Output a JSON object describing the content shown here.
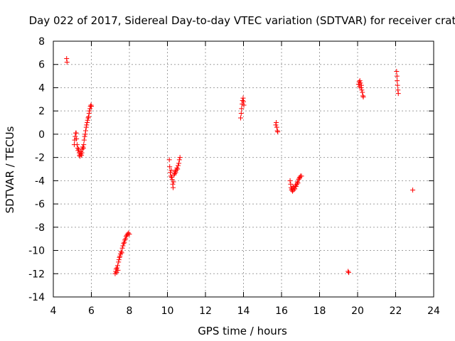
{
  "chart_data": {
    "type": "scatter",
    "title": "Day 022 of 2017, Sidereal Day-to-day VTEC variation (SDTVAR) for receiver crat",
    "xlabel": "GPS time / hours",
    "ylabel": "SDTVAR / TECUs",
    "xlim": [
      4,
      24
    ],
    "ylim": [
      -14,
      8
    ],
    "xticks": [
      4,
      6,
      8,
      10,
      12,
      14,
      16,
      18,
      20,
      22,
      24
    ],
    "yticks": [
      -14,
      -12,
      -10,
      -8,
      -6,
      -4,
      -2,
      0,
      2,
      4,
      6,
      8
    ],
    "grid": true,
    "marker": "+",
    "color": "#ff0000",
    "series": [
      {
        "name": "SDTVAR",
        "points": [
          [
            4.7,
            6.5
          ],
          [
            4.72,
            6.2
          ],
          [
            5.1,
            -0.9
          ],
          [
            5.12,
            -0.5
          ],
          [
            5.15,
            -0.2
          ],
          [
            5.18,
            0.1
          ],
          [
            5.2,
            0.1
          ],
          [
            5.22,
            -0.4
          ],
          [
            5.25,
            -0.9
          ],
          [
            5.28,
            -1.2
          ],
          [
            5.3,
            -1.4
          ],
          [
            5.33,
            -1.3
          ],
          [
            5.36,
            -1.6
          ],
          [
            5.38,
            -1.8
          ],
          [
            5.4,
            -1.9
          ],
          [
            5.43,
            -1.7
          ],
          [
            5.45,
            -1.5
          ],
          [
            5.48,
            -1.8
          ],
          [
            5.5,
            -1.6
          ],
          [
            5.52,
            -1.3
          ],
          [
            5.55,
            -1.1
          ],
          [
            5.58,
            -1.2
          ],
          [
            5.6,
            -0.9
          ],
          [
            5.62,
            -0.5
          ],
          [
            5.65,
            -0.2
          ],
          [
            5.68,
            0.0
          ],
          [
            5.7,
            0.3
          ],
          [
            5.73,
            0.6
          ],
          [
            5.75,
            0.8
          ],
          [
            5.78,
            1.0
          ],
          [
            5.8,
            1.2
          ],
          [
            5.83,
            1.4
          ],
          [
            5.85,
            1.5
          ],
          [
            5.88,
            1.8
          ],
          [
            5.9,
            2.0
          ],
          [
            5.93,
            2.2
          ],
          [
            5.95,
            2.4
          ],
          [
            5.98,
            2.5
          ],
          [
            6.0,
            2.4
          ],
          [
            7.25,
            -12.0
          ],
          [
            7.28,
            -11.8
          ],
          [
            7.3,
            -11.6
          ],
          [
            7.33,
            -11.9
          ],
          [
            7.35,
            -11.5
          ],
          [
            7.38,
            -11.3
          ],
          [
            7.4,
            -11.7
          ],
          [
            7.43,
            -11.0
          ],
          [
            7.45,
            -10.8
          ],
          [
            7.48,
            -10.6
          ],
          [
            7.5,
            -10.5
          ],
          [
            7.53,
            -10.3
          ],
          [
            7.56,
            -10.1
          ],
          [
            7.6,
            -10.2
          ],
          [
            7.63,
            -9.8
          ],
          [
            7.66,
            -9.6
          ],
          [
            7.7,
            -9.4
          ],
          [
            7.73,
            -9.3
          ],
          [
            7.76,
            -9.1
          ],
          [
            7.8,
            -9.0
          ],
          [
            7.83,
            -8.8
          ],
          [
            7.86,
            -8.7
          ],
          [
            7.9,
            -8.6
          ],
          [
            7.95,
            -8.5
          ],
          [
            8.0,
            -8.6
          ],
          [
            10.1,
            -2.2
          ],
          [
            10.12,
            -2.8
          ],
          [
            10.15,
            -3.3
          ],
          [
            10.18,
            -3.6
          ],
          [
            10.2,
            -3.1
          ],
          [
            10.22,
            -3.7
          ],
          [
            10.25,
            -3.9
          ],
          [
            10.28,
            -4.3
          ],
          [
            10.3,
            -4.6
          ],
          [
            10.32,
            -4.1
          ],
          [
            10.35,
            -3.5
          ],
          [
            10.38,
            -3.4
          ],
          [
            10.4,
            -3.2
          ],
          [
            10.43,
            -3.3
          ],
          [
            10.46,
            -3.1
          ],
          [
            10.5,
            -2.9
          ],
          [
            10.53,
            -3.0
          ],
          [
            10.56,
            -2.7
          ],
          [
            10.6,
            -2.5
          ],
          [
            10.63,
            -2.2
          ],
          [
            10.66,
            -2.0
          ],
          [
            13.85,
            1.4
          ],
          [
            13.88,
            1.8
          ],
          [
            13.9,
            2.2
          ],
          [
            13.93,
            2.6
          ],
          [
            13.95,
            2.9
          ],
          [
            13.98,
            3.1
          ],
          [
            14.0,
            2.8
          ],
          [
            14.02,
            2.5
          ],
          [
            15.7,
            0.8
          ],
          [
            15.72,
            1.0
          ],
          [
            15.75,
            0.6
          ],
          [
            15.78,
            0.3
          ],
          [
            15.8,
            0.2
          ],
          [
            16.45,
            -4.0
          ],
          [
            16.48,
            -4.3
          ],
          [
            16.5,
            -4.6
          ],
          [
            16.53,
            -4.8
          ],
          [
            16.55,
            -4.7
          ],
          [
            16.58,
            -4.9
          ],
          [
            16.6,
            -4.5
          ],
          [
            16.63,
            -4.8
          ],
          [
            16.66,
            -4.6
          ],
          [
            16.7,
            -4.7
          ],
          [
            16.73,
            -4.4
          ],
          [
            16.76,
            -4.5
          ],
          [
            16.8,
            -4.3
          ],
          [
            16.83,
            -4.1
          ],
          [
            16.86,
            -4.2
          ],
          [
            16.9,
            -3.9
          ],
          [
            16.93,
            -3.8
          ],
          [
            16.96,
            -3.7
          ],
          [
            17.0,
            -3.6
          ],
          [
            17.05,
            -3.6
          ],
          [
            19.5,
            -11.8
          ],
          [
            19.53,
            -11.9
          ],
          [
            20.05,
            4.3
          ],
          [
            20.08,
            4.5
          ],
          [
            20.1,
            4.1
          ],
          [
            20.12,
            4.6
          ],
          [
            20.15,
            4.4
          ],
          [
            20.18,
            4.0
          ],
          [
            20.2,
            4.2
          ],
          [
            20.22,
            3.8
          ],
          [
            20.25,
            3.6
          ],
          [
            20.28,
            3.3
          ],
          [
            20.3,
            3.2
          ],
          [
            22.05,
            5.4
          ],
          [
            22.07,
            5.0
          ],
          [
            22.08,
            4.6
          ],
          [
            22.1,
            4.2
          ],
          [
            22.12,
            3.8
          ],
          [
            22.14,
            3.5
          ],
          [
            22.9,
            -4.8
          ]
        ]
      }
    ]
  }
}
